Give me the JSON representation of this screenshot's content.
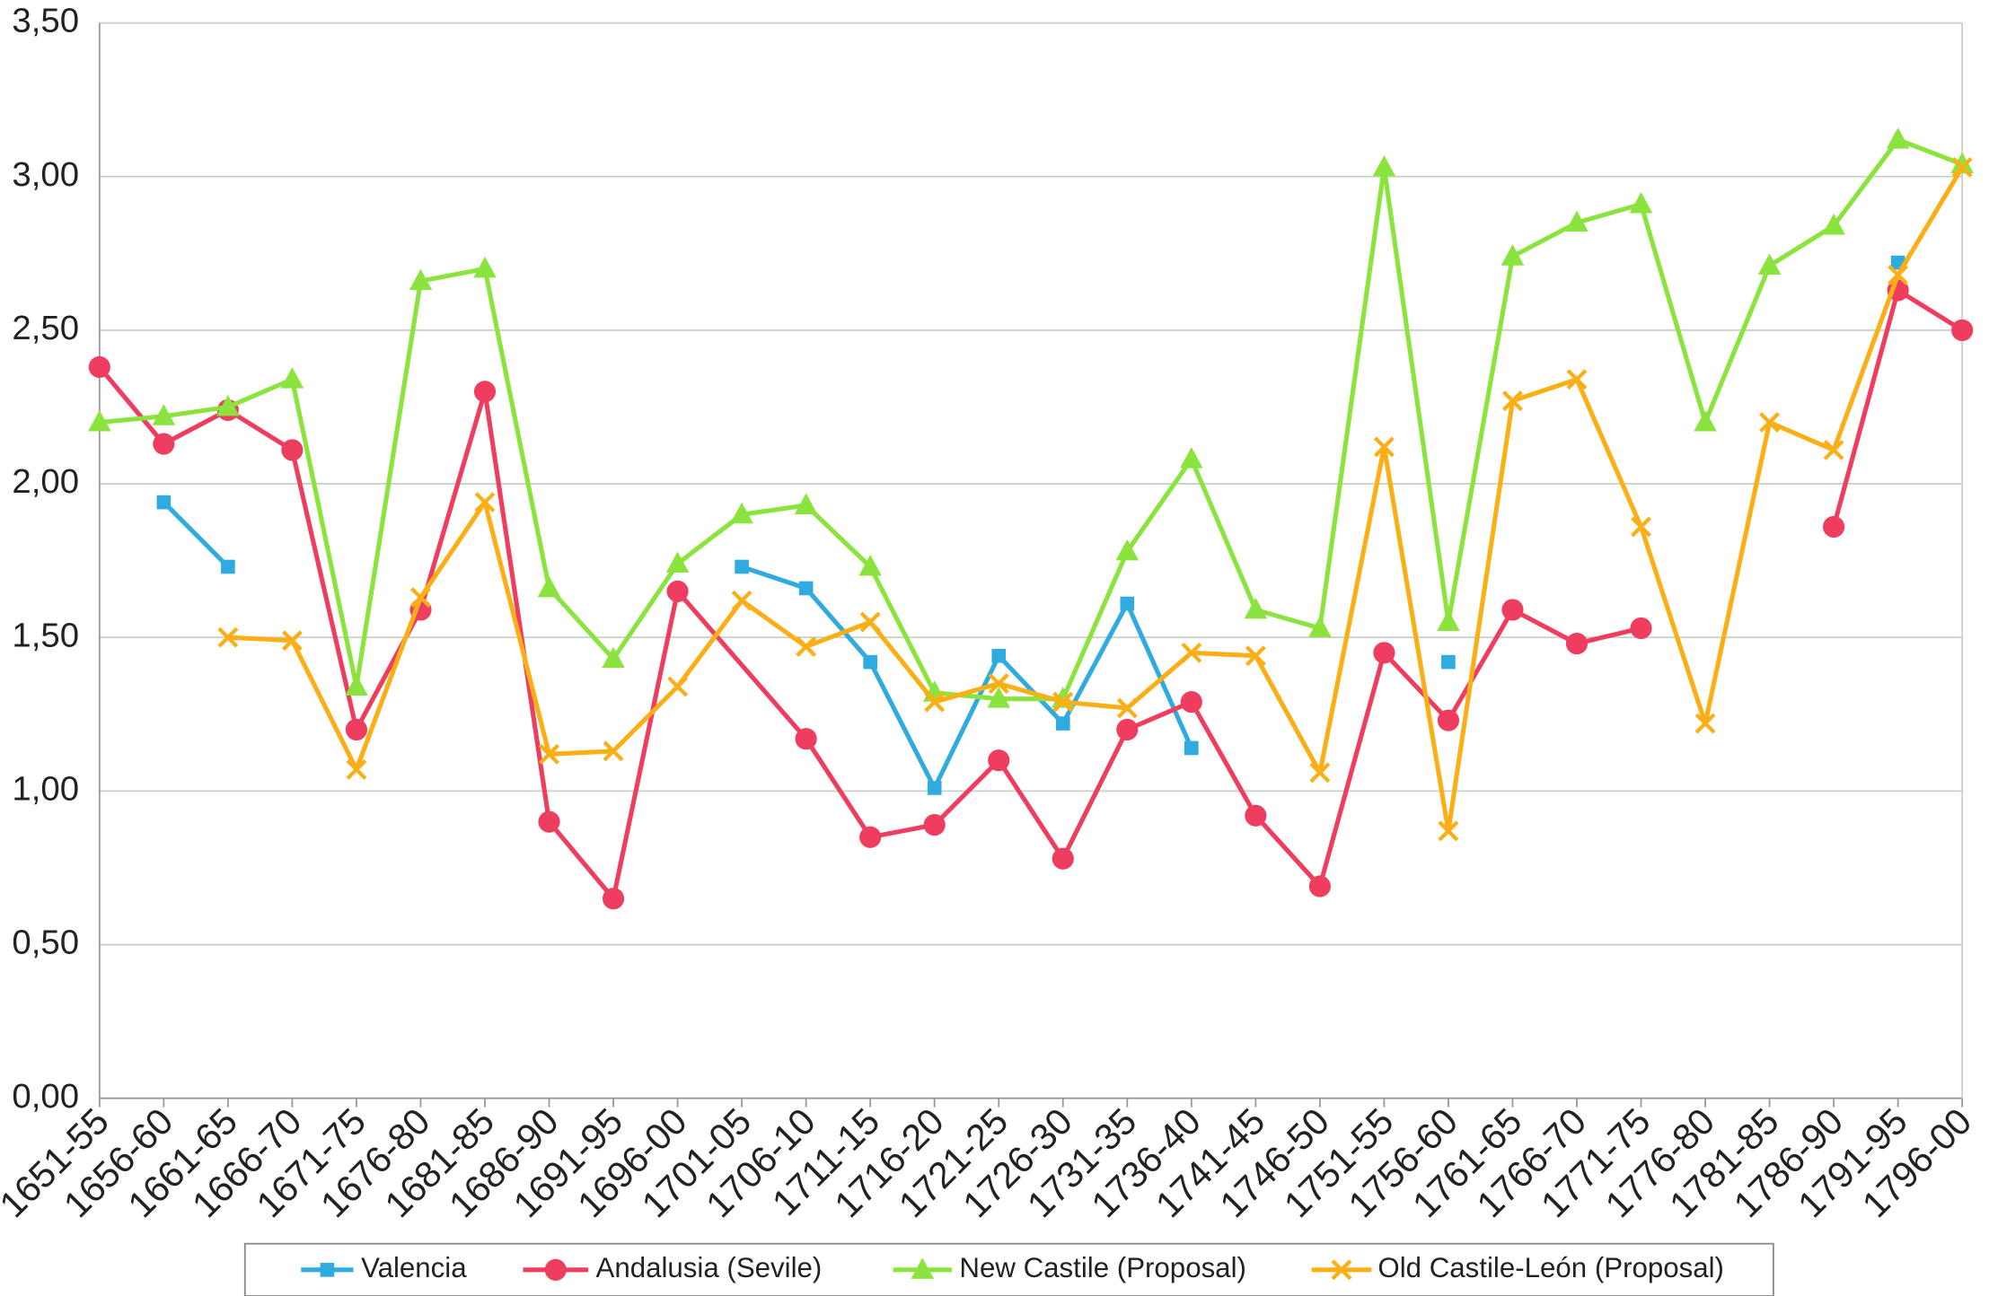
{
  "chart_data": {
    "type": "line",
    "title": "",
    "xlabel": "",
    "ylabel": "",
    "ylim": [
      0,
      3.5
    ],
    "y_ticks": [
      0,
      0.5,
      1,
      1.5,
      2,
      2.5,
      3,
      3.5
    ],
    "y_tick_labels": [
      "0,00",
      "0,50",
      "1,00",
      "1,50",
      "2,00",
      "2,50",
      "3,00",
      "3,50"
    ],
    "grid": "horizontal",
    "legend_position": "bottom",
    "categories": [
      "1651-55",
      "1656-60",
      "1661-65",
      "1666-70",
      "1671-75",
      "1676-80",
      "1681-85",
      "1686-90",
      "1691-95",
      "1696-00",
      "1701-05",
      "1706-10",
      "1711-15",
      "1716-20",
      "1721-25",
      "1726-30",
      "1731-35",
      "1736-40",
      "1741-45",
      "1746-50",
      "1751-55",
      "1756-60",
      "1761-65",
      "1766-70",
      "1771-75",
      "1776-80",
      "1781-85",
      "1786-90",
      "1791-95",
      "1796-00"
    ],
    "series": [
      {
        "name": "Valencia",
        "color": "#30ABE0",
        "marker": "square",
        "bridged_gaps": [],
        "values": [
          null,
          1.94,
          1.73,
          null,
          null,
          null,
          null,
          null,
          null,
          null,
          1.73,
          1.66,
          1.42,
          1.01,
          1.44,
          1.22,
          1.61,
          1.14,
          null,
          null,
          null,
          1.42,
          null,
          null,
          null,
          null,
          null,
          null,
          2.72,
          null
        ]
      },
      {
        "name": "Andalusia (Sevile)",
        "color": "#EE3D5F",
        "marker": "circle",
        "bridged_gaps": [
          10
        ],
        "values": [
          2.38,
          2.13,
          2.24,
          2.11,
          1.2,
          1.59,
          2.3,
          0.9,
          0.65,
          1.65,
          null,
          1.17,
          0.85,
          0.89,
          1.1,
          0.78,
          1.2,
          1.29,
          0.92,
          0.69,
          1.45,
          1.23,
          1.59,
          1.48,
          1.53,
          null,
          null,
          1.86,
          2.63,
          2.5
        ]
      },
      {
        "name": "New Castile (Proposal)",
        "color": "#8BE43E",
        "marker": "triangle",
        "bridged_gaps": [],
        "values": [
          2.2,
          2.22,
          2.25,
          2.34,
          1.34,
          2.66,
          2.7,
          1.66,
          1.43,
          1.74,
          1.9,
          1.93,
          1.73,
          1.32,
          1.3,
          1.3,
          1.78,
          2.08,
          1.59,
          1.53,
          3.03,
          1.55,
          2.74,
          2.85,
          2.91,
          2.2,
          2.71,
          2.84,
          3.12,
          3.04
        ]
      },
      {
        "name": "Old Castile-León (Proposal)",
        "color": "#FBAF17",
        "marker": "x",
        "bridged_gaps": [],
        "values": [
          null,
          null,
          1.5,
          1.49,
          1.07,
          1.63,
          1.94,
          1.12,
          1.13,
          1.34,
          1.62,
          1.47,
          1.55,
          1.29,
          1.35,
          1.29,
          1.27,
          1.45,
          1.44,
          1.06,
          2.12,
          0.87,
          2.27,
          2.34,
          1.86,
          1.22,
          2.2,
          2.11,
          2.68,
          3.03
        ]
      }
    ]
  }
}
